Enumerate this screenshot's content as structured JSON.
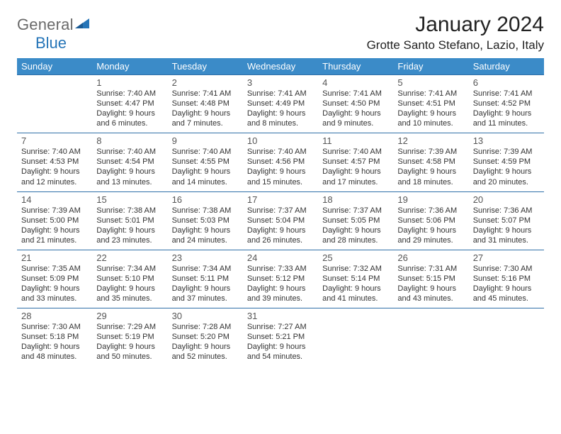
{
  "logo": {
    "word1": "General",
    "word2": "Blue"
  },
  "title": "January 2024",
  "location": "Grotte Santo Stefano, Lazio, Italy",
  "colors": {
    "header_bg": "#3b8bc8",
    "header_fg": "#ffffff",
    "row_border": "#2f6fa8",
    "logo_gray": "#6a6a6a",
    "logo_blue": "#2675b8"
  },
  "weekdays": [
    "Sunday",
    "Monday",
    "Tuesday",
    "Wednesday",
    "Thursday",
    "Friday",
    "Saturday"
  ],
  "weeks": [
    [
      null,
      {
        "n": "1",
        "sr": "7:40 AM",
        "ss": "4:47 PM",
        "dl": "9 hours and 6 minutes."
      },
      {
        "n": "2",
        "sr": "7:41 AM",
        "ss": "4:48 PM",
        "dl": "9 hours and 7 minutes."
      },
      {
        "n": "3",
        "sr": "7:41 AM",
        "ss": "4:49 PM",
        "dl": "9 hours and 8 minutes."
      },
      {
        "n": "4",
        "sr": "7:41 AM",
        "ss": "4:50 PM",
        "dl": "9 hours and 9 minutes."
      },
      {
        "n": "5",
        "sr": "7:41 AM",
        "ss": "4:51 PM",
        "dl": "9 hours and 10 minutes."
      },
      {
        "n": "6",
        "sr": "7:41 AM",
        "ss": "4:52 PM",
        "dl": "9 hours and 11 minutes."
      }
    ],
    [
      {
        "n": "7",
        "sr": "7:40 AM",
        "ss": "4:53 PM",
        "dl": "9 hours and 12 minutes."
      },
      {
        "n": "8",
        "sr": "7:40 AM",
        "ss": "4:54 PM",
        "dl": "9 hours and 13 minutes."
      },
      {
        "n": "9",
        "sr": "7:40 AM",
        "ss": "4:55 PM",
        "dl": "9 hours and 14 minutes."
      },
      {
        "n": "10",
        "sr": "7:40 AM",
        "ss": "4:56 PM",
        "dl": "9 hours and 15 minutes."
      },
      {
        "n": "11",
        "sr": "7:40 AM",
        "ss": "4:57 PM",
        "dl": "9 hours and 17 minutes."
      },
      {
        "n": "12",
        "sr": "7:39 AM",
        "ss": "4:58 PM",
        "dl": "9 hours and 18 minutes."
      },
      {
        "n": "13",
        "sr": "7:39 AM",
        "ss": "4:59 PM",
        "dl": "9 hours and 20 minutes."
      }
    ],
    [
      {
        "n": "14",
        "sr": "7:39 AM",
        "ss": "5:00 PM",
        "dl": "9 hours and 21 minutes."
      },
      {
        "n": "15",
        "sr": "7:38 AM",
        "ss": "5:01 PM",
        "dl": "9 hours and 23 minutes."
      },
      {
        "n": "16",
        "sr": "7:38 AM",
        "ss": "5:03 PM",
        "dl": "9 hours and 24 minutes."
      },
      {
        "n": "17",
        "sr": "7:37 AM",
        "ss": "5:04 PM",
        "dl": "9 hours and 26 minutes."
      },
      {
        "n": "18",
        "sr": "7:37 AM",
        "ss": "5:05 PM",
        "dl": "9 hours and 28 minutes."
      },
      {
        "n": "19",
        "sr": "7:36 AM",
        "ss": "5:06 PM",
        "dl": "9 hours and 29 minutes."
      },
      {
        "n": "20",
        "sr": "7:36 AM",
        "ss": "5:07 PM",
        "dl": "9 hours and 31 minutes."
      }
    ],
    [
      {
        "n": "21",
        "sr": "7:35 AM",
        "ss": "5:09 PM",
        "dl": "9 hours and 33 minutes."
      },
      {
        "n": "22",
        "sr": "7:34 AM",
        "ss": "5:10 PM",
        "dl": "9 hours and 35 minutes."
      },
      {
        "n": "23",
        "sr": "7:34 AM",
        "ss": "5:11 PM",
        "dl": "9 hours and 37 minutes."
      },
      {
        "n": "24",
        "sr": "7:33 AM",
        "ss": "5:12 PM",
        "dl": "9 hours and 39 minutes."
      },
      {
        "n": "25",
        "sr": "7:32 AM",
        "ss": "5:14 PM",
        "dl": "9 hours and 41 minutes."
      },
      {
        "n": "26",
        "sr": "7:31 AM",
        "ss": "5:15 PM",
        "dl": "9 hours and 43 minutes."
      },
      {
        "n": "27",
        "sr": "7:30 AM",
        "ss": "5:16 PM",
        "dl": "9 hours and 45 minutes."
      }
    ],
    [
      {
        "n": "28",
        "sr": "7:30 AM",
        "ss": "5:18 PM",
        "dl": "9 hours and 48 minutes."
      },
      {
        "n": "29",
        "sr": "7:29 AM",
        "ss": "5:19 PM",
        "dl": "9 hours and 50 minutes."
      },
      {
        "n": "30",
        "sr": "7:28 AM",
        "ss": "5:20 PM",
        "dl": "9 hours and 52 minutes."
      },
      {
        "n": "31",
        "sr": "7:27 AM",
        "ss": "5:21 PM",
        "dl": "9 hours and 54 minutes."
      },
      null,
      null,
      null
    ]
  ],
  "labels": {
    "sunrise": "Sunrise: ",
    "sunset": "Sunset: ",
    "daylight": "Daylight: "
  }
}
